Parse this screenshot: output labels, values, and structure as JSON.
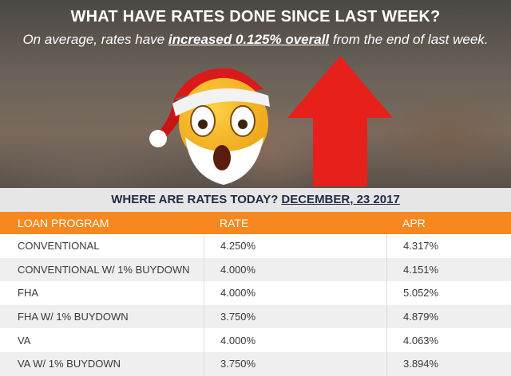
{
  "hero": {
    "title": "WHAT HAVE RATES DONE SINCE LAST WEEK?",
    "subtitle_before": "On average, rates have ",
    "subtitle_emphasis": "increased 0.125% overall",
    "subtitle_after": " from the end of last week."
  },
  "date_bar": {
    "label": "WHERE ARE RATES TODAY?",
    "date": "DECEMBER, 23 2017"
  },
  "table": {
    "headers": [
      "LOAN PROGRAM",
      "RATE",
      "APR"
    ],
    "rows": [
      [
        "CONVENTIONAL",
        "4.250%",
        "4.317%"
      ],
      [
        "CONVENTIONAL W/ 1% BUYDOWN",
        "4.000%",
        "4.151%"
      ],
      [
        "FHA",
        "4.000%",
        "5.052%"
      ],
      [
        "FHA W/ 1% BUYDOWN",
        "3.750%",
        "4.879%"
      ],
      [
        "VA",
        "4.000%",
        "4.063%"
      ],
      [
        "VA W/ 1% BUYDOWN",
        "3.750%",
        "3.894%"
      ]
    ]
  },
  "colors": {
    "header_orange": "#f7881f",
    "arrow_red": "#e8201c",
    "navy_text": "#1f2a44"
  },
  "icons": {
    "emoji": "santa-surprised-emoji-icon",
    "arrow": "red-up-arrow-icon"
  }
}
